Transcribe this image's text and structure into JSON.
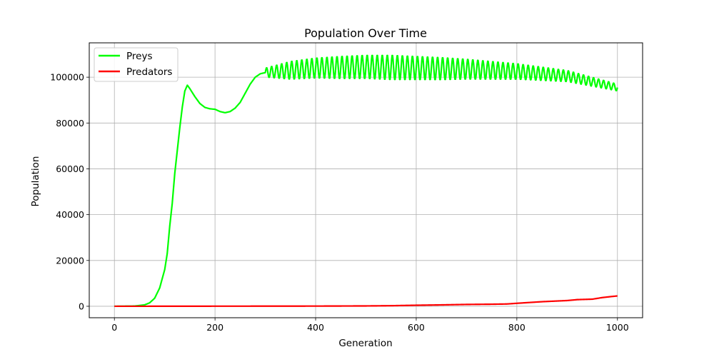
{
  "chart_data": {
    "type": "line",
    "title": "Population Over Time",
    "xlabel": "Generation",
    "ylabel": "Population",
    "xlim": [
      -50,
      1050
    ],
    "ylim": [
      -5000,
      115000
    ],
    "xticks": [
      0,
      200,
      400,
      600,
      800,
      1000
    ],
    "yticks": [
      0,
      20000,
      40000,
      60000,
      80000,
      100000
    ],
    "grid": true,
    "legend": "top-left",
    "series": [
      {
        "name": "Preys",
        "color": "#00ff00",
        "oscillation": {
          "start": 300,
          "period": 10,
          "amplitude": [
            [
              300,
              2000
            ],
            [
              350,
              4000
            ],
            [
              450,
              5000
            ],
            [
              550,
              5500
            ],
            [
              650,
              5000
            ],
            [
              750,
              4000
            ],
            [
              850,
              3000
            ],
            [
              950,
              2000
            ],
            [
              1000,
              1500
            ]
          ]
        },
        "points": [
          [
            0,
            0
          ],
          [
            40,
            100
          ],
          [
            60,
            600
          ],
          [
            70,
            1500
          ],
          [
            80,
            3500
          ],
          [
            90,
            8000
          ],
          [
            100,
            16000
          ],
          [
            105,
            23000
          ],
          [
            110,
            35000
          ],
          [
            115,
            45000
          ],
          [
            120,
            58000
          ],
          [
            125,
            68000
          ],
          [
            130,
            78000
          ],
          [
            135,
            87000
          ],
          [
            140,
            94000
          ],
          [
            145,
            96500
          ],
          [
            150,
            95000
          ],
          [
            160,
            91500
          ],
          [
            170,
            88500
          ],
          [
            180,
            86800
          ],
          [
            190,
            86200
          ],
          [
            200,
            86000
          ],
          [
            210,
            85000
          ],
          [
            220,
            84500
          ],
          [
            230,
            85000
          ],
          [
            240,
            86500
          ],
          [
            250,
            89000
          ],
          [
            260,
            93000
          ],
          [
            270,
            97000
          ],
          [
            280,
            100000
          ],
          [
            290,
            101500
          ],
          [
            300,
            102000
          ],
          [
            400,
            104000
          ],
          [
            500,
            104500
          ],
          [
            600,
            104000
          ],
          [
            700,
            103500
          ],
          [
            800,
            102500
          ],
          [
            900,
            100500
          ],
          [
            950,
            98000
          ],
          [
            1000,
            95500
          ]
        ]
      },
      {
        "name": "Predators",
        "color": "#ff0000",
        "points": [
          [
            0,
            0
          ],
          [
            400,
            80
          ],
          [
            500,
            150
          ],
          [
            550,
            250
          ],
          [
            600,
            450
          ],
          [
            650,
            600
          ],
          [
            700,
            800
          ],
          [
            750,
            900
          ],
          [
            780,
            1000
          ],
          [
            800,
            1300
          ],
          [
            850,
            2000
          ],
          [
            900,
            2500
          ],
          [
            920,
            2900
          ],
          [
            950,
            3100
          ],
          [
            970,
            3800
          ],
          [
            990,
            4300
          ],
          [
            1000,
            4500
          ]
        ]
      }
    ]
  }
}
